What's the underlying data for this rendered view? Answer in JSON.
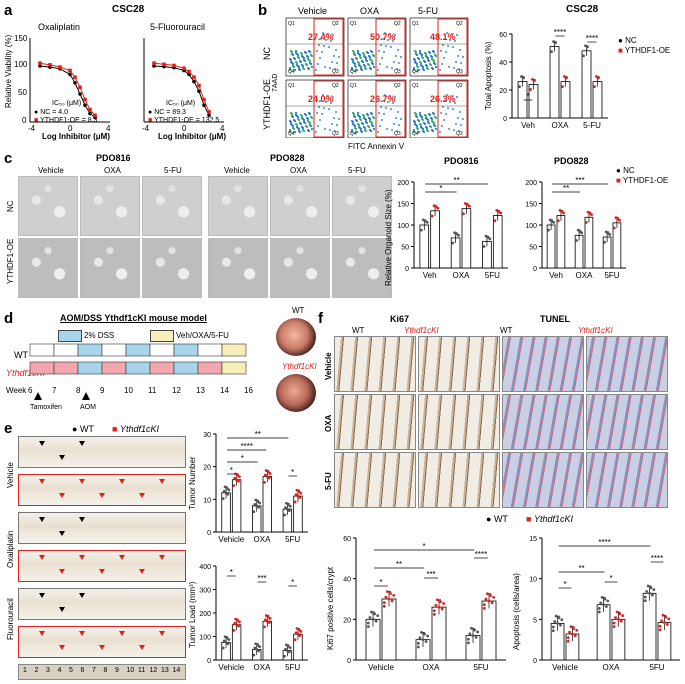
{
  "panels": {
    "a": {
      "label": "a",
      "title": "CSC28",
      "sub_left": "Oxaliplatin",
      "sub_right": "5-Fluorouracil",
      "ylabel": "Relative Viability (%)",
      "xlabel": "Log Inhibitor (μM)",
      "ic50_header": "IC₅₀ (μM)",
      "left_nc": "NC",
      "left_nc_val": "= 4.0",
      "left_oe": "YTHDF1-OE",
      "left_oe_val": "= 8.3",
      "right_nc": "NC",
      "right_nc_val": "= 89.3",
      "right_oe": "YTHDF1-OE",
      "right_oe_val": "= 132.5",
      "yticks": [
        "150",
        "100",
        "50",
        "0"
      ],
      "xticks_left": [
        "-4",
        "0",
        "4"
      ],
      "xticks_right": [
        "-4",
        "0",
        "4"
      ]
    },
    "b": {
      "label": "b",
      "cols": [
        "Vehicle",
        "OXA",
        "5-FU"
      ],
      "rows": [
        "NC",
        "YTHDF1-OE"
      ],
      "ylabel": "7AAD",
      "xlabel": "FITC Annexin V",
      "pct_nc": [
        "27.4%",
        "50.7%",
        "48.1%"
      ],
      "pct_oe": [
        "24.0%",
        "26.7%",
        "26.3%"
      ],
      "quad_labels": [
        "Q1",
        "Q2",
        "Q3",
        "Q4"
      ],
      "bar_title": "CSC28",
      "bar_ylabel": "Total Apoptosis (%)",
      "legend_nc": "NC",
      "legend_oe": "YTHDF1-OE",
      "bar_cats": [
        "Veh",
        "OXA",
        "5-FU"
      ],
      "bar_yticks": [
        "0",
        "20",
        "40",
        "60"
      ],
      "sig": [
        "*",
        "****",
        "****"
      ]
    },
    "c": {
      "label": "c",
      "group1": "PDO816",
      "group2": "PDO828",
      "cols": [
        "Vehicle",
        "OXA",
        "5-FU",
        "Vehicle",
        "OXA",
        "5-FU"
      ],
      "rows": [
        "NC",
        "YTHDF1-OE"
      ],
      "bar_title1": "PDO816",
      "bar_title2": "PDO828",
      "bar_ylabel": "Relative Organoid Size (%)",
      "legend_nc": "NC",
      "legend_oe": "YTHDF1-OE",
      "bar_cats": [
        "Veh",
        "OXA",
        "5FU"
      ],
      "bar_yticks": [
        "0",
        "50",
        "100",
        "150",
        "200"
      ],
      "sig1": [
        "*",
        "**"
      ],
      "sig2": [
        "**",
        "***"
      ]
    },
    "d": {
      "label": "d",
      "title": "AOM/DSS Ythdf1cKI mouse model",
      "legend_dss": "2% DSS",
      "legend_drug": "Veh/OXA/5-FU",
      "row_wt": "WT",
      "row_cki": "Ythdf1cKI",
      "week_label": "Week",
      "weeks": [
        "6",
        "7",
        "8",
        "9",
        "10",
        "11",
        "12",
        "13",
        "14",
        "16"
      ],
      "tamoxifen": "Tamoxifen",
      "aom": "AOM",
      "endo_wt": "WT",
      "endo_cki": "Ythdf1cKI"
    },
    "e": {
      "label": "e",
      "legend_wt": "WT",
      "legend_cki": "Ythdf1cKI",
      "rows": [
        "Vehicle",
        "Oxaliplatin",
        "Fluorouracil"
      ],
      "bar1_ylabel": "Tumor Number",
      "bar2_ylabel": "Tumor Load (mm³)",
      "bar_cats": [
        "Vehicle",
        "OXA",
        "5FU"
      ],
      "bar1_yticks": [
        "0",
        "10",
        "20",
        "30"
      ],
      "bar2_yticks": [
        "0",
        "100",
        "200",
        "300",
        "400"
      ],
      "sig1": [
        "*",
        "*",
        "****",
        "*",
        "**"
      ],
      "sig2": [
        "*",
        "***",
        "*"
      ],
      "ruler": [
        "1",
        "2",
        "3",
        "4",
        "5",
        "6",
        "7",
        "8",
        "9",
        "10",
        "11",
        "12",
        "13",
        "14"
      ]
    },
    "f": {
      "label": "f",
      "ki67": "Ki67",
      "tunel": "TUNEL",
      "wt": "WT",
      "cki": "Ythdf1cKI",
      "rows": [
        "Vehicle",
        "OXA",
        "5-FU"
      ],
      "legend_wt": "WT",
      "legend_cki": "Ythdf1cKI",
      "bar1_ylabel": "Ki67 positive cells/crypt",
      "bar2_ylabel": "Apoptosis (cells/area)",
      "bar_cats": [
        "Vehicle",
        "OXA",
        "5FU"
      ],
      "bar1_yticks": [
        "0",
        "20",
        "40",
        "60"
      ],
      "bar2_yticks": [
        "0",
        "5",
        "10",
        "15"
      ],
      "sig1": [
        "*",
        "**",
        "***",
        "*",
        "****"
      ],
      "sig2": [
        "*",
        "**",
        "*",
        "****",
        "****"
      ]
    }
  },
  "chart_data": [
    {
      "type": "bar",
      "id": "b-apoptosis",
      "title": "CSC28",
      "ylabel": "Total Apoptosis (%)",
      "categories": [
        "Veh",
        "OXA",
        "5-FU"
      ],
      "series": [
        {
          "name": "NC",
          "values": [
            26,
            51,
            48
          ]
        },
        {
          "name": "YTHDF1-OE",
          "values": [
            24,
            26,
            26
          ]
        }
      ],
      "ylim": [
        0,
        60
      ]
    },
    {
      "type": "bar",
      "id": "c-pdo816",
      "title": "PDO816",
      "ylabel": "Relative Organoid Size (%)",
      "categories": [
        "Veh",
        "OXA",
        "5FU"
      ],
      "series": [
        {
          "name": "NC",
          "values": [
            100,
            70,
            62
          ]
        },
        {
          "name": "YTHDF1-OE",
          "values": [
            133,
            138,
            122
          ]
        }
      ],
      "ylim": [
        0,
        200
      ]
    },
    {
      "type": "bar",
      "id": "c-pdo828",
      "title": "PDO828",
      "ylabel": "Relative Organoid Size (%)",
      "categories": [
        "Veh",
        "OXA",
        "5FU"
      ],
      "series": [
        {
          "name": "NC",
          "values": [
            100,
            76,
            72
          ]
        },
        {
          "name": "YTHDF1-OE",
          "values": [
            122,
            118,
            105
          ]
        }
      ],
      "ylim": [
        0,
        200
      ]
    },
    {
      "type": "bar",
      "id": "e-tumor-number",
      "ylabel": "Tumor Number",
      "categories": [
        "Vehicle",
        "OXA",
        "5FU"
      ],
      "series": [
        {
          "name": "WT",
          "values": [
            12,
            8,
            7
          ]
        },
        {
          "name": "Ythdf1cKI",
          "values": [
            16,
            17,
            11
          ]
        }
      ],
      "ylim": [
        0,
        30
      ]
    },
    {
      "type": "bar",
      "id": "e-tumor-load",
      "ylabel": "Tumor Load (mm³)",
      "categories": [
        "Vehicle",
        "OXA",
        "5FU"
      ],
      "series": [
        {
          "name": "WT",
          "values": [
            75,
            45,
            40
          ]
        },
        {
          "name": "Ythdf1cKI",
          "values": [
            150,
            165,
            110
          ]
        }
      ],
      "ylim": [
        0,
        400
      ]
    },
    {
      "type": "bar",
      "id": "f-ki67",
      "ylabel": "Ki67 positive cells/crypt",
      "categories": [
        "Vehicle",
        "OXA",
        "5FU"
      ],
      "series": [
        {
          "name": "WT",
          "values": [
            20,
            10,
            12
          ]
        },
        {
          "name": "Ythdf1cKI",
          "values": [
            30,
            26,
            29
          ]
        }
      ],
      "ylim": [
        0,
        60
      ]
    },
    {
      "type": "bar",
      "id": "f-apoptosis",
      "ylabel": "Apoptosis (cells/area)",
      "categories": [
        "Vehicle",
        "OXA",
        "5FU"
      ],
      "series": [
        {
          "name": "WT",
          "values": [
            4.5,
            6.8,
            8.2
          ]
        },
        {
          "name": "Ythdf1cKI",
          "values": [
            3.2,
            5.0,
            4.6
          ]
        }
      ],
      "ylim": [
        0,
        15
      ]
    },
    {
      "type": "line",
      "id": "a-oxaliplatin",
      "title": "Oxaliplatin",
      "xlabel": "Log Inhibitor (μM)",
      "ylabel": "Relative Viability (%)",
      "series": [
        {
          "name": "NC",
          "x": [
            -3,
            -2,
            -1,
            0,
            0.5,
            1,
            1.5,
            2,
            2.5
          ],
          "y": [
            100,
            98,
            95,
            85,
            70,
            50,
            30,
            15,
            8
          ]
        },
        {
          "name": "YTHDF1-OE",
          "x": [
            -3,
            -2,
            -1,
            0,
            0.5,
            1,
            1.5,
            2,
            2.5
          ],
          "y": [
            105,
            102,
            98,
            92,
            80,
            62,
            40,
            22,
            12
          ]
        }
      ],
      "xlim": [
        -4,
        4
      ],
      "ylim": [
        0,
        150
      ]
    },
    {
      "type": "line",
      "id": "a-5fu",
      "title": "5-Fluorouracil",
      "xlabel": "Log Inhibitor (μM)",
      "series": [
        {
          "name": "NC",
          "x": [
            -3,
            -2,
            -1,
            0,
            0.5,
            1,
            1.5,
            2,
            2.5
          ],
          "y": [
            100,
            99,
            97,
            92,
            85,
            72,
            55,
            30,
            12
          ]
        },
        {
          "name": "YTHDF1-OE",
          "x": [
            -3,
            -2,
            -1,
            0,
            0.5,
            1,
            1.5,
            2,
            2.5
          ],
          "y": [
            105,
            103,
            101,
            96,
            90,
            80,
            65,
            40,
            18
          ]
        }
      ],
      "xlim": [
        -4,
        4
      ],
      "ylim": [
        0,
        150
      ]
    }
  ]
}
